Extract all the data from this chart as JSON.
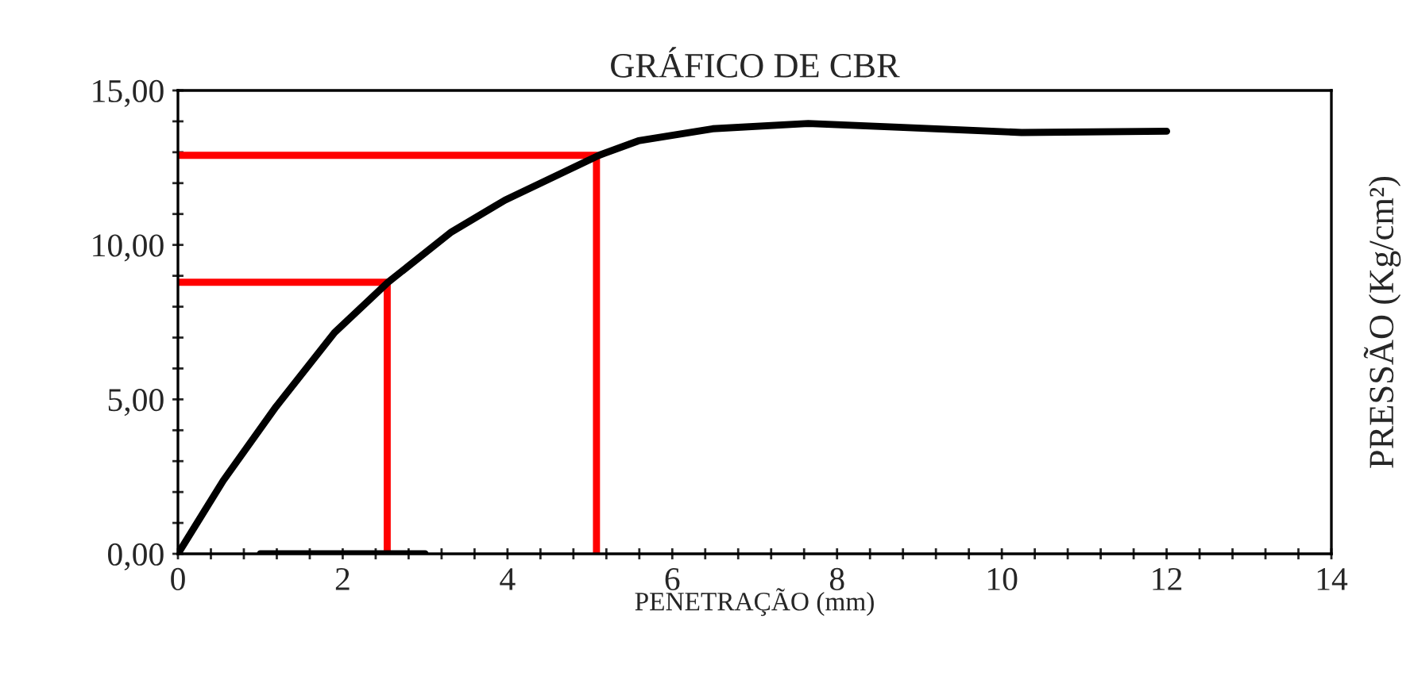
{
  "chart_data": {
    "type": "line",
    "title": "GRÁFICO DE CBR",
    "xlabel": "PENETRAÇÃO (mm)",
    "ylabel": "PRESSÃO (Kg/cm²)",
    "series": [
      {
        "color": "#000000",
        "x": [
          0,
          0.55,
          1.19,
          1.9,
          2.55,
          3.32,
          3.97,
          5.11,
          5.59,
          6.49,
          7.65,
          8.75,
          10.24,
          12.0
        ],
        "values": [
          0,
          2.37,
          4.76,
          7.16,
          8.79,
          10.42,
          11.45,
          12.9,
          13.37,
          13.76,
          13.93,
          13.81,
          13.64,
          13.68
        ]
      },
      {
        "color": "#ff0000",
        "x": [
          0,
          2.54,
          2.54
        ],
        "values": [
          8.79,
          8.79,
          0
        ]
      },
      {
        "color": "#ff0000",
        "x": [
          0,
          5.08,
          5.08
        ],
        "values": [
          12.9,
          12.9,
          0
        ]
      },
      {
        "color": "#000000",
        "x": [
          1,
          3
        ],
        "values": [
          0,
          0
        ]
      }
    ],
    "xlim": [
      0,
      14
    ],
    "ylim": [
      0,
      15
    ],
    "xticks": [
      0,
      {
        "value": 0.4,
        "label": null
      },
      {
        "value": 0.8,
        "label": null
      },
      {
        "value": 1.2,
        "label": null
      },
      {
        "value": 1.6,
        "label": null
      },
      2,
      {
        "value": 2.4,
        "label": null
      },
      {
        "value": 2.8,
        "label": null
      },
      {
        "value": 3.2,
        "label": null
      },
      {
        "value": 3.6,
        "label": null
      },
      4,
      {
        "value": 4.4,
        "label": null
      },
      {
        "value": 4.8,
        "label": null
      },
      {
        "value": 5.2,
        "label": null
      },
      {
        "value": 5.6,
        "label": null
      },
      6,
      {
        "value": 6.4,
        "label": null
      },
      {
        "value": 6.8,
        "label": null
      },
      {
        "value": 7.2,
        "label": null
      },
      {
        "value": 7.6,
        "label": null
      },
      8,
      {
        "value": 8.4,
        "label": null
      },
      {
        "value": 8.8,
        "label": null
      },
      {
        "value": 9.2,
        "label": null
      },
      {
        "value": 9.6,
        "label": null
      },
      10,
      {
        "value": 10.4,
        "label": null
      },
      {
        "value": 10.8,
        "label": null
      },
      {
        "value": 11.2,
        "label": null
      },
      {
        "value": 11.6,
        "label": null
      },
      12,
      {
        "value": 12.4,
        "label": null
      },
      {
        "value": 12.8,
        "label": null
      },
      {
        "value": 13.2,
        "label": null
      },
      {
        "value": 13.6,
        "label": null
      },
      14
    ],
    "yticks": [
      {
        "value": 0,
        "label": "0,00"
      },
      {
        "value": 1,
        "label": null
      },
      {
        "value": 2,
        "label": null
      },
      {
        "value": 3,
        "label": null
      },
      {
        "value": 4,
        "label": null
      },
      {
        "value": 5,
        "label": "5,00"
      },
      {
        "value": 6,
        "label": null
      },
      {
        "value": 7,
        "label": null
      },
      {
        "value": 8,
        "label": null
      },
      {
        "value": 9,
        "label": null
      },
      {
        "value": 10,
        "label": "10,00"
      },
      {
        "value": 11,
        "label": null
      },
      {
        "value": 12,
        "label": null
      },
      {
        "value": 13,
        "label": null
      },
      {
        "value": 14,
        "label": null
      },
      {
        "value": 15,
        "label": "15,00"
      }
    ],
    "grid": false,
    "legend": false,
    "marker": "none",
    "line_style": "solid"
  }
}
